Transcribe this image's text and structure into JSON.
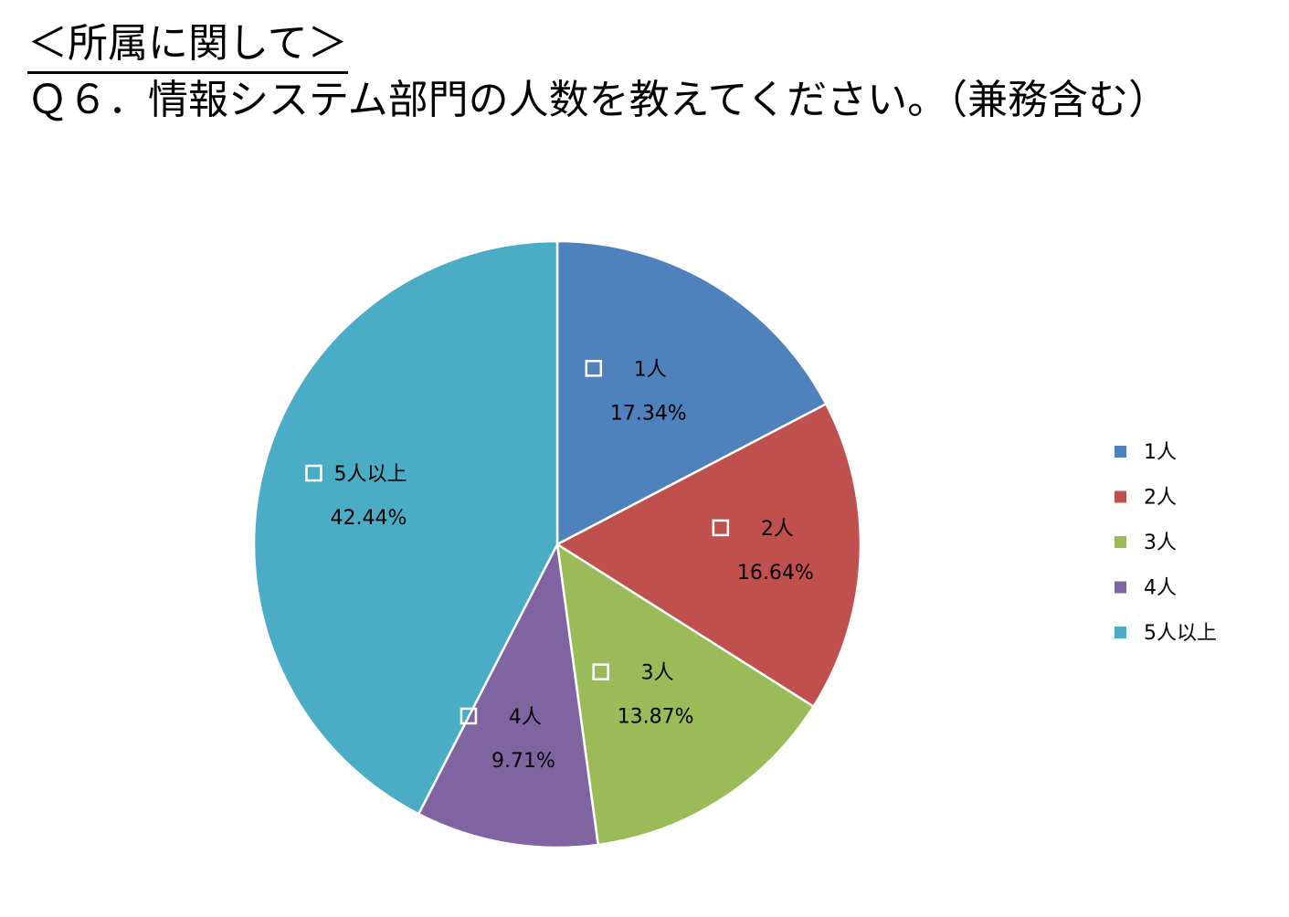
{
  "heading": "＜所属に関して＞",
  "question": "Ｑ６．情報システム部門の人数を教えてください。（兼務含む）",
  "chart_data": {
    "type": "pie",
    "categories": [
      "1人",
      "2人",
      "3人",
      "4人",
      "5人以上"
    ],
    "values": [
      17.34,
      16.64,
      13.87,
      9.71,
      42.44
    ],
    "value_labels": [
      "17.34%",
      "16.64%",
      "13.87%",
      "9.71%",
      "42.44%"
    ],
    "colors": [
      "#4f81bd",
      "#c0504d",
      "#9bbb59",
      "#8064a2",
      "#4bacc6"
    ],
    "legend_position": "right",
    "start_angle_deg": 0,
    "direction": "clockwise"
  }
}
